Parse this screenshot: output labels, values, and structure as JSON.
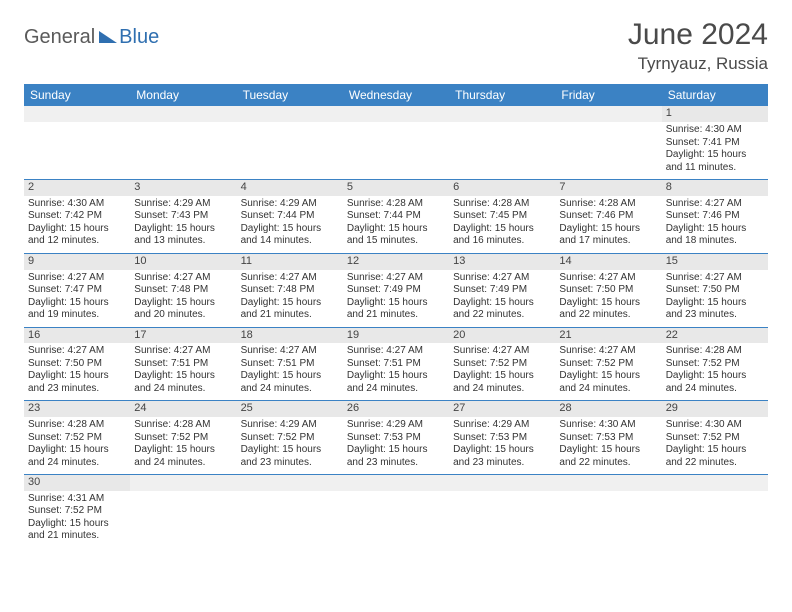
{
  "logo": {
    "part1": "General",
    "part2": "Blue"
  },
  "title": "June 2024",
  "location": "Tyrnyauz, Russia",
  "colors": {
    "header_bg": "#3b82c4",
    "header_text": "#ffffff",
    "daynum_bg": "#e8e8e8",
    "rule": "#3b82c4",
    "logo_gray": "#5a5a5a",
    "logo_blue": "#2f6fb0"
  },
  "weekdays": [
    "Sunday",
    "Monday",
    "Tuesday",
    "Wednesday",
    "Thursday",
    "Friday",
    "Saturday"
  ],
  "weeks": [
    [
      null,
      null,
      null,
      null,
      null,
      null,
      {
        "n": "1",
        "sr": "4:30 AM",
        "ss": "7:41 PM",
        "dh": "15",
        "dm": "11"
      }
    ],
    [
      {
        "n": "2",
        "sr": "4:30 AM",
        "ss": "7:42 PM",
        "dh": "15",
        "dm": "12"
      },
      {
        "n": "3",
        "sr": "4:29 AM",
        "ss": "7:43 PM",
        "dh": "15",
        "dm": "13"
      },
      {
        "n": "4",
        "sr": "4:29 AM",
        "ss": "7:44 PM",
        "dh": "15",
        "dm": "14"
      },
      {
        "n": "5",
        "sr": "4:28 AM",
        "ss": "7:44 PM",
        "dh": "15",
        "dm": "15"
      },
      {
        "n": "6",
        "sr": "4:28 AM",
        "ss": "7:45 PM",
        "dh": "15",
        "dm": "16"
      },
      {
        "n": "7",
        "sr": "4:28 AM",
        "ss": "7:46 PM",
        "dh": "15",
        "dm": "17"
      },
      {
        "n": "8",
        "sr": "4:27 AM",
        "ss": "7:46 PM",
        "dh": "15",
        "dm": "18"
      }
    ],
    [
      {
        "n": "9",
        "sr": "4:27 AM",
        "ss": "7:47 PM",
        "dh": "15",
        "dm": "19"
      },
      {
        "n": "10",
        "sr": "4:27 AM",
        "ss": "7:48 PM",
        "dh": "15",
        "dm": "20"
      },
      {
        "n": "11",
        "sr": "4:27 AM",
        "ss": "7:48 PM",
        "dh": "15",
        "dm": "21"
      },
      {
        "n": "12",
        "sr": "4:27 AM",
        "ss": "7:49 PM",
        "dh": "15",
        "dm": "21"
      },
      {
        "n": "13",
        "sr": "4:27 AM",
        "ss": "7:49 PM",
        "dh": "15",
        "dm": "22"
      },
      {
        "n": "14",
        "sr": "4:27 AM",
        "ss": "7:50 PM",
        "dh": "15",
        "dm": "22"
      },
      {
        "n": "15",
        "sr": "4:27 AM",
        "ss": "7:50 PM",
        "dh": "15",
        "dm": "23"
      }
    ],
    [
      {
        "n": "16",
        "sr": "4:27 AM",
        "ss": "7:50 PM",
        "dh": "15",
        "dm": "23"
      },
      {
        "n": "17",
        "sr": "4:27 AM",
        "ss": "7:51 PM",
        "dh": "15",
        "dm": "24"
      },
      {
        "n": "18",
        "sr": "4:27 AM",
        "ss": "7:51 PM",
        "dh": "15",
        "dm": "24"
      },
      {
        "n": "19",
        "sr": "4:27 AM",
        "ss": "7:51 PM",
        "dh": "15",
        "dm": "24"
      },
      {
        "n": "20",
        "sr": "4:27 AM",
        "ss": "7:52 PM",
        "dh": "15",
        "dm": "24"
      },
      {
        "n": "21",
        "sr": "4:27 AM",
        "ss": "7:52 PM",
        "dh": "15",
        "dm": "24"
      },
      {
        "n": "22",
        "sr": "4:28 AM",
        "ss": "7:52 PM",
        "dh": "15",
        "dm": "24"
      }
    ],
    [
      {
        "n": "23",
        "sr": "4:28 AM",
        "ss": "7:52 PM",
        "dh": "15",
        "dm": "24"
      },
      {
        "n": "24",
        "sr": "4:28 AM",
        "ss": "7:52 PM",
        "dh": "15",
        "dm": "24"
      },
      {
        "n": "25",
        "sr": "4:29 AM",
        "ss": "7:52 PM",
        "dh": "15",
        "dm": "23"
      },
      {
        "n": "26",
        "sr": "4:29 AM",
        "ss": "7:53 PM",
        "dh": "15",
        "dm": "23"
      },
      {
        "n": "27",
        "sr": "4:29 AM",
        "ss": "7:53 PM",
        "dh": "15",
        "dm": "23"
      },
      {
        "n": "28",
        "sr": "4:30 AM",
        "ss": "7:53 PM",
        "dh": "15",
        "dm": "22"
      },
      {
        "n": "29",
        "sr": "4:30 AM",
        "ss": "7:52 PM",
        "dh": "15",
        "dm": "22"
      }
    ],
    [
      {
        "n": "30",
        "sr": "4:31 AM",
        "ss": "7:52 PM",
        "dh": "15",
        "dm": "21"
      },
      null,
      null,
      null,
      null,
      null,
      null
    ]
  ],
  "labels": {
    "sunrise": "Sunrise:",
    "sunset": "Sunset:",
    "daylight_prefix": "Daylight:",
    "hours_word": "hours",
    "and_word": "and",
    "minutes_word": "minutes."
  }
}
